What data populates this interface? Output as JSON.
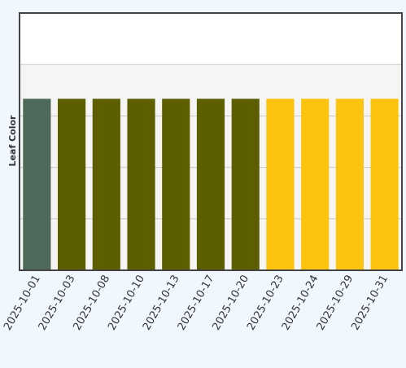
{
  "chart_data": {
    "type": "bar",
    "title": "",
    "xlabel": "",
    "ylabel": "Leaf Color",
    "categories": [
      "2025-10-01",
      "2025-10-03",
      "2025-10-08",
      "2025-10-10",
      "2025-10-13",
      "2025-10-17",
      "2025-10-20",
      "2025-10-23",
      "2025-10-24",
      "2025-10-29",
      "2025-10-31"
    ],
    "values": [
      1,
      1,
      1,
      1,
      1,
      1,
      1,
      1,
      1,
      1,
      1
    ],
    "ylim": [
      0,
      1.5
    ],
    "bar_colors": [
      "#4f6a5b",
      "#5c5e00",
      "#5c5e00",
      "#5c5e00",
      "#5c5e00",
      "#5c5e00",
      "#5c5e00",
      "#fcc30f",
      "#fcc30f",
      "#fcc30f",
      "#fcc30f"
    ],
    "grid": true,
    "legend": "none",
    "colors": {
      "page_background": "#f0f7ff",
      "plot_background_top": "#ffffff",
      "plot_background_band": "#f5f5f5",
      "grid": "#c8c8c8",
      "axis": "#444444",
      "text": "#333333"
    }
  }
}
